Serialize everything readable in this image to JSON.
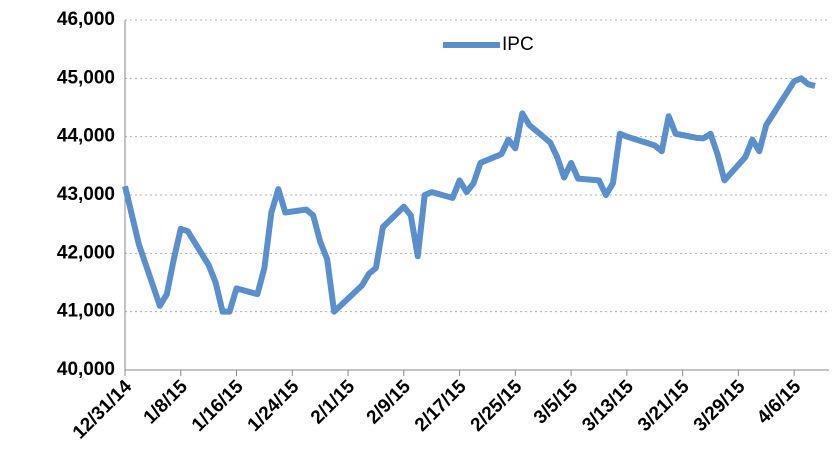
{
  "chart_data": {
    "type": "line",
    "x": [
      "2014-12-31",
      "2015-01-02",
      "2015-01-05",
      "2015-01-06",
      "2015-01-07",
      "2015-01-08",
      "2015-01-09",
      "2015-01-12",
      "2015-01-13",
      "2015-01-14",
      "2015-01-15",
      "2015-01-16",
      "2015-01-19",
      "2015-01-20",
      "2015-01-21",
      "2015-01-22",
      "2015-01-23",
      "2015-01-26",
      "2015-01-27",
      "2015-01-28",
      "2015-01-29",
      "2015-01-30",
      "2015-02-03",
      "2015-02-04",
      "2015-02-05",
      "2015-02-06",
      "2015-02-09",
      "2015-02-10",
      "2015-02-11",
      "2015-02-12",
      "2015-02-13",
      "2015-02-16",
      "2015-02-17",
      "2015-02-18",
      "2015-02-19",
      "2015-02-20",
      "2015-02-23",
      "2015-02-24",
      "2015-02-25",
      "2015-02-26",
      "2015-02-27",
      "2015-03-02",
      "2015-03-03",
      "2015-03-04",
      "2015-03-05",
      "2015-03-06",
      "2015-03-09",
      "2015-03-10",
      "2015-03-11",
      "2015-03-12",
      "2015-03-13",
      "2015-03-17",
      "2015-03-18",
      "2015-03-19",
      "2015-03-20",
      "2015-03-23",
      "2015-03-24",
      "2015-03-25",
      "2015-03-26",
      "2015-03-27",
      "2015-03-30",
      "2015-03-31",
      "2015-04-01",
      "2015-04-02",
      "2015-04-06",
      "2015-04-07",
      "2015-04-08",
      "2015-04-09"
    ],
    "series": [
      {
        "name": "IPC",
        "color": "#5b8fcb",
        "values": [
          43150,
          42150,
          41100,
          41300,
          41900,
          42420,
          42380,
          41800,
          41500,
          41000,
          41000,
          41400,
          41300,
          41750,
          42700,
          43100,
          42700,
          42750,
          42650,
          42200,
          41900,
          41000,
          41450,
          41650,
          41750,
          42450,
          42800,
          42650,
          41950,
          43000,
          43050,
          42950,
          43250,
          43050,
          43200,
          43550,
          43700,
          43950,
          43800,
          44400,
          44200,
          43900,
          43650,
          43300,
          43550,
          43280,
          43250,
          43000,
          43200,
          44050,
          44000,
          43850,
          43750,
          44350,
          44050,
          43980,
          43970,
          44050,
          43700,
          43250,
          43650,
          43950,
          43750,
          44200,
          44950,
          45000,
          44900,
          44870
        ]
      }
    ],
    "xlim": [
      "2014-12-31",
      "2015-04-11"
    ],
    "xticks": [
      {
        "value": "2014-12-31",
        "label": "12/31/14"
      },
      {
        "value": "2015-01-08",
        "label": "1/8/15"
      },
      {
        "value": "2015-01-16",
        "label": "1/16/15"
      },
      {
        "value": "2015-01-24",
        "label": "1/24/15"
      },
      {
        "value": "2015-02-01",
        "label": "2/1/15"
      },
      {
        "value": "2015-02-09",
        "label": "2/9/15"
      },
      {
        "value": "2015-02-17",
        "label": "2/17/15"
      },
      {
        "value": "2015-02-25",
        "label": "2/25/15"
      },
      {
        "value": "2015-03-05",
        "label": "3/5/15"
      },
      {
        "value": "2015-03-13",
        "label": "3/13/15"
      },
      {
        "value": "2015-03-21",
        "label": "3/21/15"
      },
      {
        "value": "2015-03-29",
        "label": "3/29/15"
      },
      {
        "value": "2015-04-06",
        "label": "4/6/15"
      }
    ],
    "ylim": [
      40000,
      46000
    ],
    "yticks": [
      {
        "value": 40000,
        "label": "40,000"
      },
      {
        "value": 41000,
        "label": "41,000"
      },
      {
        "value": 42000,
        "label": "42,000"
      },
      {
        "value": 43000,
        "label": "43,000"
      },
      {
        "value": 44000,
        "label": "44,000"
      },
      {
        "value": 45000,
        "label": "45,000"
      },
      {
        "value": 46000,
        "label": "46,000"
      }
    ],
    "grid": true,
    "legend": "top"
  }
}
